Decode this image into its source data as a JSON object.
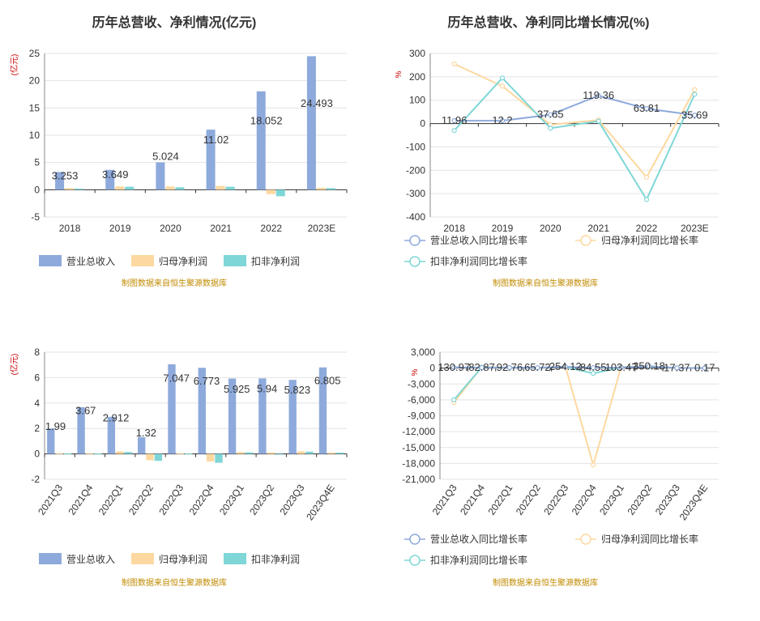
{
  "chart_data": [
    {
      "type": "bar",
      "title": "历年总营收、净利情况(亿元)",
      "ylabel": "(亿元)",
      "categories": [
        "2018",
        "2019",
        "2020",
        "2021",
        "2022",
        "2023E"
      ],
      "ylim": [
        -5,
        25
      ],
      "yticks": [
        -5,
        0,
        5,
        10,
        15,
        20,
        25
      ],
      "grid": true,
      "legend": "bottom-left",
      "series": [
        {
          "name": "营业总收入",
          "color": "#8eaadc",
          "values": [
            3.253,
            3.649,
            5.024,
            11.02,
            18.052,
            24.493
          ],
          "labels": [
            "3.253",
            "3.649",
            "5.024",
            "11.02",
            "18.052",
            "24.493"
          ]
        },
        {
          "name": "归母净利润",
          "color": "#fdd8a0",
          "values": [
            0.3,
            0.6,
            0.6,
            0.7,
            -0.8,
            0.35
          ]
        },
        {
          "name": "扣非净利润",
          "color": "#7fd6d6",
          "values": [
            0.2,
            0.55,
            0.45,
            0.55,
            -1.2,
            0.3
          ]
        }
      ],
      "source": "制图数据来自恒生聚源数据库"
    },
    {
      "type": "line",
      "title": "历年总营收、净利同比增长情况(%)",
      "ylabel": "%",
      "categories": [
        "2018",
        "2019",
        "2020",
        "2021",
        "2022",
        "2023E"
      ],
      "ylim": [
        -400,
        300
      ],
      "yticks": [
        -400,
        -300,
        -200,
        -100,
        0,
        100,
        200,
        300
      ],
      "grid": true,
      "legend": "bottom-left",
      "series": [
        {
          "name": "营业总收入同比增长率",
          "color": "#8eaadc",
          "values": [
            11.96,
            12.2,
            37.65,
            119.36,
            63.81,
            35.69
          ],
          "labels": [
            "11.96",
            "12.2",
            "37.65",
            "119.36",
            "63.81",
            "35.69"
          ]
        },
        {
          "name": "归母净利润同比增长率",
          "color": "#fdd8a0",
          "values": [
            255,
            160,
            -5,
            15,
            -230,
            145
          ]
        },
        {
          "name": "扣非净利润同比增长率",
          "color": "#7fd6d6",
          "values": [
            -30,
            195,
            -20,
            10,
            -325,
            125
          ]
        }
      ],
      "source": "制图数据来自恒生聚源数据库"
    },
    {
      "type": "bar",
      "title": "总营收、净利季度变动情况(亿元)",
      "ylabel": "(亿元)",
      "categories": [
        "2021Q3",
        "2021Q4",
        "2022Q1",
        "2022Q2",
        "2022Q3",
        "2022Q4",
        "2023Q1",
        "2023Q2",
        "2023Q3",
        "2023Q4E"
      ],
      "ylim": [
        -2,
        8
      ],
      "yticks": [
        -2,
        0,
        2,
        4,
        6,
        8
      ],
      "grid": true,
      "legend": "bottom-left",
      "series": [
        {
          "name": "营业总收入",
          "color": "#8eaadc",
          "values": [
            1.99,
            3.67,
            2.912,
            1.32,
            7.047,
            6.773,
            5.925,
            5.94,
            5.823,
            6.805
          ],
          "labels": [
            "1.99",
            "3.67",
            "2.912",
            "1.32",
            "7.047",
            "6.773",
            "5.925",
            "5.94",
            "5.823",
            "6.805"
          ]
        },
        {
          "name": "归母净利润",
          "color": "#fdd8a0",
          "values": [
            0.05,
            0.05,
            0.2,
            -0.5,
            0.05,
            -0.6,
            0.15,
            0.1,
            0.2,
            0.1
          ]
        },
        {
          "name": "扣非净利润",
          "color": "#7fd6d6",
          "values": [
            0.03,
            0.03,
            0.15,
            -0.55,
            0.03,
            -0.7,
            0.12,
            -0.05,
            0.18,
            0.1
          ]
        }
      ],
      "source": "制图数据来自恒生聚源数据库"
    },
    {
      "type": "line",
      "title": "总营收、净利同比增长率季度变动情况(%)",
      "ylabel": "%",
      "categories": [
        "2021Q3",
        "2021Q4",
        "2022Q1",
        "2022Q2",
        "2022Q3",
        "2022Q4",
        "2023Q1",
        "2023Q2",
        "2023Q3",
        "2023Q4E"
      ],
      "ylim": [
        -21000,
        3000
      ],
      "yticks": [
        -21000,
        -18000,
        -15000,
        -12000,
        -9000,
        -6000,
        -3000,
        0,
        3000
      ],
      "ytick_labels": [
        "-21,000",
        "-18,000",
        "-15,000",
        "-12,000",
        "-9,000",
        "-6,000",
        "-3,000",
        "0",
        "3,000"
      ],
      "grid": true,
      "legend": "bottom-left",
      "series": [
        {
          "name": "营业总收入同比增长率",
          "color": "#8eaadc",
          "values": [
            130.97,
            82.87,
            92.76,
            65.72,
            254.12,
            84.55,
            103.47,
            350.18,
            17.37,
            0.17
          ],
          "labels": [
            "130.97",
            "82.87",
            "92.76",
            "65.72",
            "254.12",
            "84.55",
            "103.47",
            "350.18",
            "17.37",
            "0.17"
          ]
        },
        {
          "name": "归母净利润同比增长率",
          "color": "#fdd8a0",
          "values": [
            -6500,
            200,
            100,
            50,
            300,
            -18300,
            200,
            350,
            50,
            20
          ]
        },
        {
          "name": "扣非净利润同比增长率",
          "color": "#7fd6d6",
          "values": [
            -6000,
            150,
            80,
            40,
            250,
            -1000,
            150,
            300,
            40,
            15
          ]
        }
      ],
      "source": "制图数据来自恒生聚源数据库"
    }
  ]
}
